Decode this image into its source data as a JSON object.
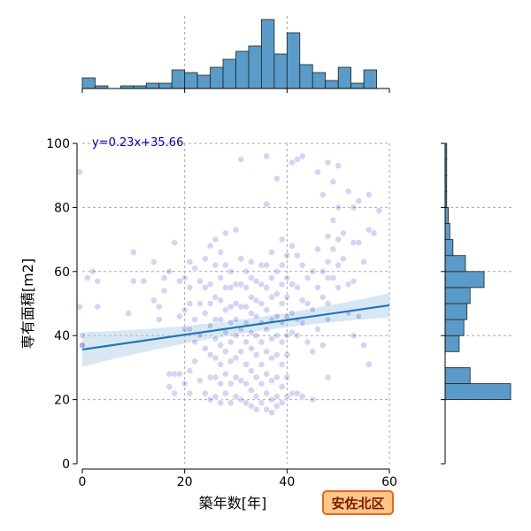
{
  "chart_data": {
    "type": "scatter",
    "subtype": "jointplot",
    "xlabel": "築年数[年]",
    "ylabel": "専有面積[m2]",
    "xlim": [
      0,
      60
    ],
    "ylim": [
      0,
      100
    ],
    "xticks": [
      0,
      20,
      40,
      60
    ],
    "yticks": [
      0,
      20,
      40,
      60,
      80,
      100
    ],
    "grid": true,
    "regression": {
      "slope": 0.23,
      "intercept": 35.66,
      "label": "y=0.23x+35.66"
    },
    "badge": "安佐北区",
    "colors": {
      "point": "#3b3bcf",
      "hist": "#5a9bc9",
      "line": "#1f77b4",
      "band": "#a9c9e6"
    },
    "x_hist": {
      "bin_edges": [
        0,
        2.5,
        5,
        7.5,
        10,
        12.5,
        15,
        17.5,
        20,
        22.5,
        25,
        27.5,
        30,
        32.5,
        35,
        37.5,
        40,
        42.5,
        45,
        47.5,
        50,
        52.5,
        55,
        57.5,
        60
      ],
      "counts": [
        4,
        1,
        0,
        1,
        1,
        2,
        2,
        7,
        6,
        5,
        8,
        11,
        14,
        16,
        26,
        13,
        21,
        9,
        6,
        3,
        8,
        2,
        7,
        0
      ]
    },
    "y_hist": {
      "bin_edges": [
        0,
        5,
        10,
        15,
        20,
        25,
        30,
        35,
        40,
        45,
        50,
        55,
        60,
        65,
        70,
        75,
        80,
        85,
        90,
        95,
        100
      ],
      "counts": [
        0,
        0,
        0,
        0,
        42,
        16,
        0,
        9,
        12,
        14,
        16,
        25,
        13,
        5,
        3,
        2,
        1,
        1,
        1,
        1
      ]
    },
    "points": [
      [
        -0.5,
        91
      ],
      [
        -0.5,
        49
      ],
      [
        0,
        40
      ],
      [
        0,
        37
      ],
      [
        0,
        37
      ],
      [
        1,
        58
      ],
      [
        2,
        60
      ],
      [
        3,
        57
      ],
      [
        3,
        49
      ],
      [
        9,
        47
      ],
      [
        10,
        66
      ],
      [
        10,
        57
      ],
      [
        12,
        57
      ],
      [
        14,
        63
      ],
      [
        14,
        51
      ],
      [
        15,
        49
      ],
      [
        15,
        45
      ],
      [
        16,
        58
      ],
      [
        16,
        54
      ],
      [
        17,
        60
      ],
      [
        17,
        28
      ],
      [
        17,
        24
      ],
      [
        18,
        69
      ],
      [
        18,
        28
      ],
      [
        18,
        22
      ],
      [
        19,
        57
      ],
      [
        19,
        46
      ],
      [
        19,
        28
      ],
      [
        20,
        58
      ],
      [
        20,
        48
      ],
      [
        20,
        42
      ],
      [
        20,
        25
      ],
      [
        21,
        63
      ],
      [
        21,
        55
      ],
      [
        21,
        50
      ],
      [
        21,
        42
      ],
      [
        21,
        29
      ],
      [
        21,
        22
      ],
      [
        22,
        61
      ],
      [
        22,
        45
      ],
      [
        22,
        38
      ],
      [
        22,
        32
      ],
      [
        23,
        57
      ],
      [
        23,
        50
      ],
      [
        23,
        40
      ],
      [
        23,
        26
      ],
      [
        24,
        64
      ],
      [
        24,
        55
      ],
      [
        24,
        47
      ],
      [
        24,
        36
      ],
      [
        24,
        22
      ],
      [
        25,
        68
      ],
      [
        25,
        56
      ],
      [
        25,
        50
      ],
      [
        25,
        43
      ],
      [
        25,
        34
      ],
      [
        25,
        27
      ],
      [
        25,
        20
      ],
      [
        26,
        70
      ],
      [
        26,
        62
      ],
      [
        26,
        52
      ],
      [
        26,
        45
      ],
      [
        26,
        39
      ],
      [
        26,
        33
      ],
      [
        26,
        27
      ],
      [
        26,
        21
      ],
      [
        27,
        66
      ],
      [
        27,
        58
      ],
      [
        27,
        51
      ],
      [
        27,
        45
      ],
      [
        27,
        37
      ],
      [
        27,
        31
      ],
      [
        27,
        25
      ],
      [
        27,
        19
      ],
      [
        28,
        72
      ],
      [
        28,
        62
      ],
      [
        28,
        55
      ],
      [
        28,
        48
      ],
      [
        28,
        41
      ],
      [
        28,
        35
      ],
      [
        28,
        28
      ],
      [
        28,
        22
      ],
      [
        29,
        60
      ],
      [
        29,
        55
      ],
      [
        29,
        49
      ],
      [
        29,
        44
      ],
      [
        29,
        38
      ],
      [
        29,
        32
      ],
      [
        29,
        25
      ],
      [
        29,
        19
      ],
      [
        30,
        73
      ],
      [
        30,
        56
      ],
      [
        30,
        50
      ],
      [
        30,
        45
      ],
      [
        30,
        40
      ],
      [
        30,
        33
      ],
      [
        30,
        27
      ],
      [
        30,
        21
      ],
      [
        31,
        95
      ],
      [
        31,
        64
      ],
      [
        31,
        56
      ],
      [
        31,
        49
      ],
      [
        31,
        42
      ],
      [
        31,
        35
      ],
      [
        31,
        26
      ],
      [
        31,
        20
      ],
      [
        32,
        60
      ],
      [
        32,
        55
      ],
      [
        32,
        49
      ],
      [
        32,
        44
      ],
      [
        32,
        38
      ],
      [
        32,
        31
      ],
      [
        32,
        25
      ],
      [
        32,
        19
      ],
      [
        33,
        63
      ],
      [
        33,
        58
      ],
      [
        33,
        52
      ],
      [
        33,
        47
      ],
      [
        33,
        41
      ],
      [
        33,
        36
      ],
      [
        33,
        29
      ],
      [
        33,
        23
      ],
      [
        33,
        18
      ],
      [
        34,
        57
      ],
      [
        34,
        51
      ],
      [
        34,
        46
      ],
      [
        34,
        40
      ],
      [
        34,
        34
      ],
      [
        34,
        27
      ],
      [
        34,
        21
      ],
      [
        34,
        17
      ],
      [
        35,
        62
      ],
      [
        35,
        56
      ],
      [
        35,
        50
      ],
      [
        35,
        44
      ],
      [
        35,
        38
      ],
      [
        35,
        31
      ],
      [
        35,
        25
      ],
      [
        35,
        19
      ],
      [
        36,
        96
      ],
      [
        36,
        81
      ],
      [
        36,
        62
      ],
      [
        36,
        55
      ],
      [
        36,
        48
      ],
      [
        36,
        42
      ],
      [
        36,
        35
      ],
      [
        36,
        28
      ],
      [
        36,
        22
      ],
      [
        36,
        17
      ],
      [
        37,
        66
      ],
      [
        37,
        58
      ],
      [
        37,
        52
      ],
      [
        37,
        45
      ],
      [
        37,
        39
      ],
      [
        37,
        33
      ],
      [
        37,
        26
      ],
      [
        37,
        20
      ],
      [
        37,
        16
      ],
      [
        38,
        89
      ],
      [
        38,
        60
      ],
      [
        38,
        53
      ],
      [
        38,
        46
      ],
      [
        38,
        40
      ],
      [
        38,
        34
      ],
      [
        38,
        27
      ],
      [
        38,
        21
      ],
      [
        38,
        18
      ],
      [
        39,
        70
      ],
      [
        39,
        62
      ],
      [
        39,
        56
      ],
      [
        39,
        50
      ],
      [
        39,
        44
      ],
      [
        39,
        38
      ],
      [
        39,
        31
      ],
      [
        39,
        24
      ],
      [
        39,
        19
      ],
      [
        40,
        65
      ],
      [
        40,
        58
      ],
      [
        40,
        52
      ],
      [
        40,
        46
      ],
      [
        40,
        40
      ],
      [
        40,
        34
      ],
      [
        40,
        27
      ],
      [
        40,
        21
      ],
      [
        41,
        94
      ],
      [
        41,
        68
      ],
      [
        41,
        56
      ],
      [
        41,
        47
      ],
      [
        41,
        41
      ],
      [
        41,
        22
      ],
      [
        42,
        95
      ],
      [
        42,
        65
      ],
      [
        42,
        55
      ],
      [
        42,
        45
      ],
      [
        42,
        40
      ],
      [
        42,
        22
      ],
      [
        43,
        96
      ],
      [
        43,
        62
      ],
      [
        43,
        51
      ],
      [
        43,
        44
      ],
      [
        43,
        21
      ],
      [
        44,
        58
      ],
      [
        44,
        50
      ],
      [
        44,
        38
      ],
      [
        45,
        60
      ],
      [
        45,
        48
      ],
      [
        45,
        35
      ],
      [
        45,
        20
      ],
      [
        46,
        91
      ],
      [
        46,
        67
      ],
      [
        46,
        55
      ],
      [
        46,
        42
      ],
      [
        47,
        84
      ],
      [
        47,
        60
      ],
      [
        47,
        52
      ],
      [
        47,
        37
      ],
      [
        48,
        94
      ],
      [
        48,
        71
      ],
      [
        48,
        63
      ],
      [
        48,
        58
      ],
      [
        48,
        50
      ],
      [
        48,
        45
      ],
      [
        48,
        27
      ],
      [
        49,
        88
      ],
      [
        49,
        76
      ],
      [
        49,
        67
      ],
      [
        49,
        58
      ],
      [
        50,
        93
      ],
      [
        50,
        80
      ],
      [
        50,
        70
      ],
      [
        50,
        62
      ],
      [
        50,
        55
      ],
      [
        51,
        72
      ],
      [
        51,
        64
      ],
      [
        52,
        85
      ],
      [
        52,
        56
      ],
      [
        52,
        47
      ],
      [
        53,
        80
      ],
      [
        53,
        69
      ],
      [
        53,
        57
      ],
      [
        53,
        40
      ],
      [
        54,
        82
      ],
      [
        54,
        69
      ],
      [
        54,
        46
      ],
      [
        55,
        63
      ],
      [
        55,
        37
      ],
      [
        56,
        84
      ],
      [
        56,
        73
      ],
      [
        56,
        31
      ],
      [
        57,
        72
      ],
      [
        58,
        79
      ]
    ]
  }
}
